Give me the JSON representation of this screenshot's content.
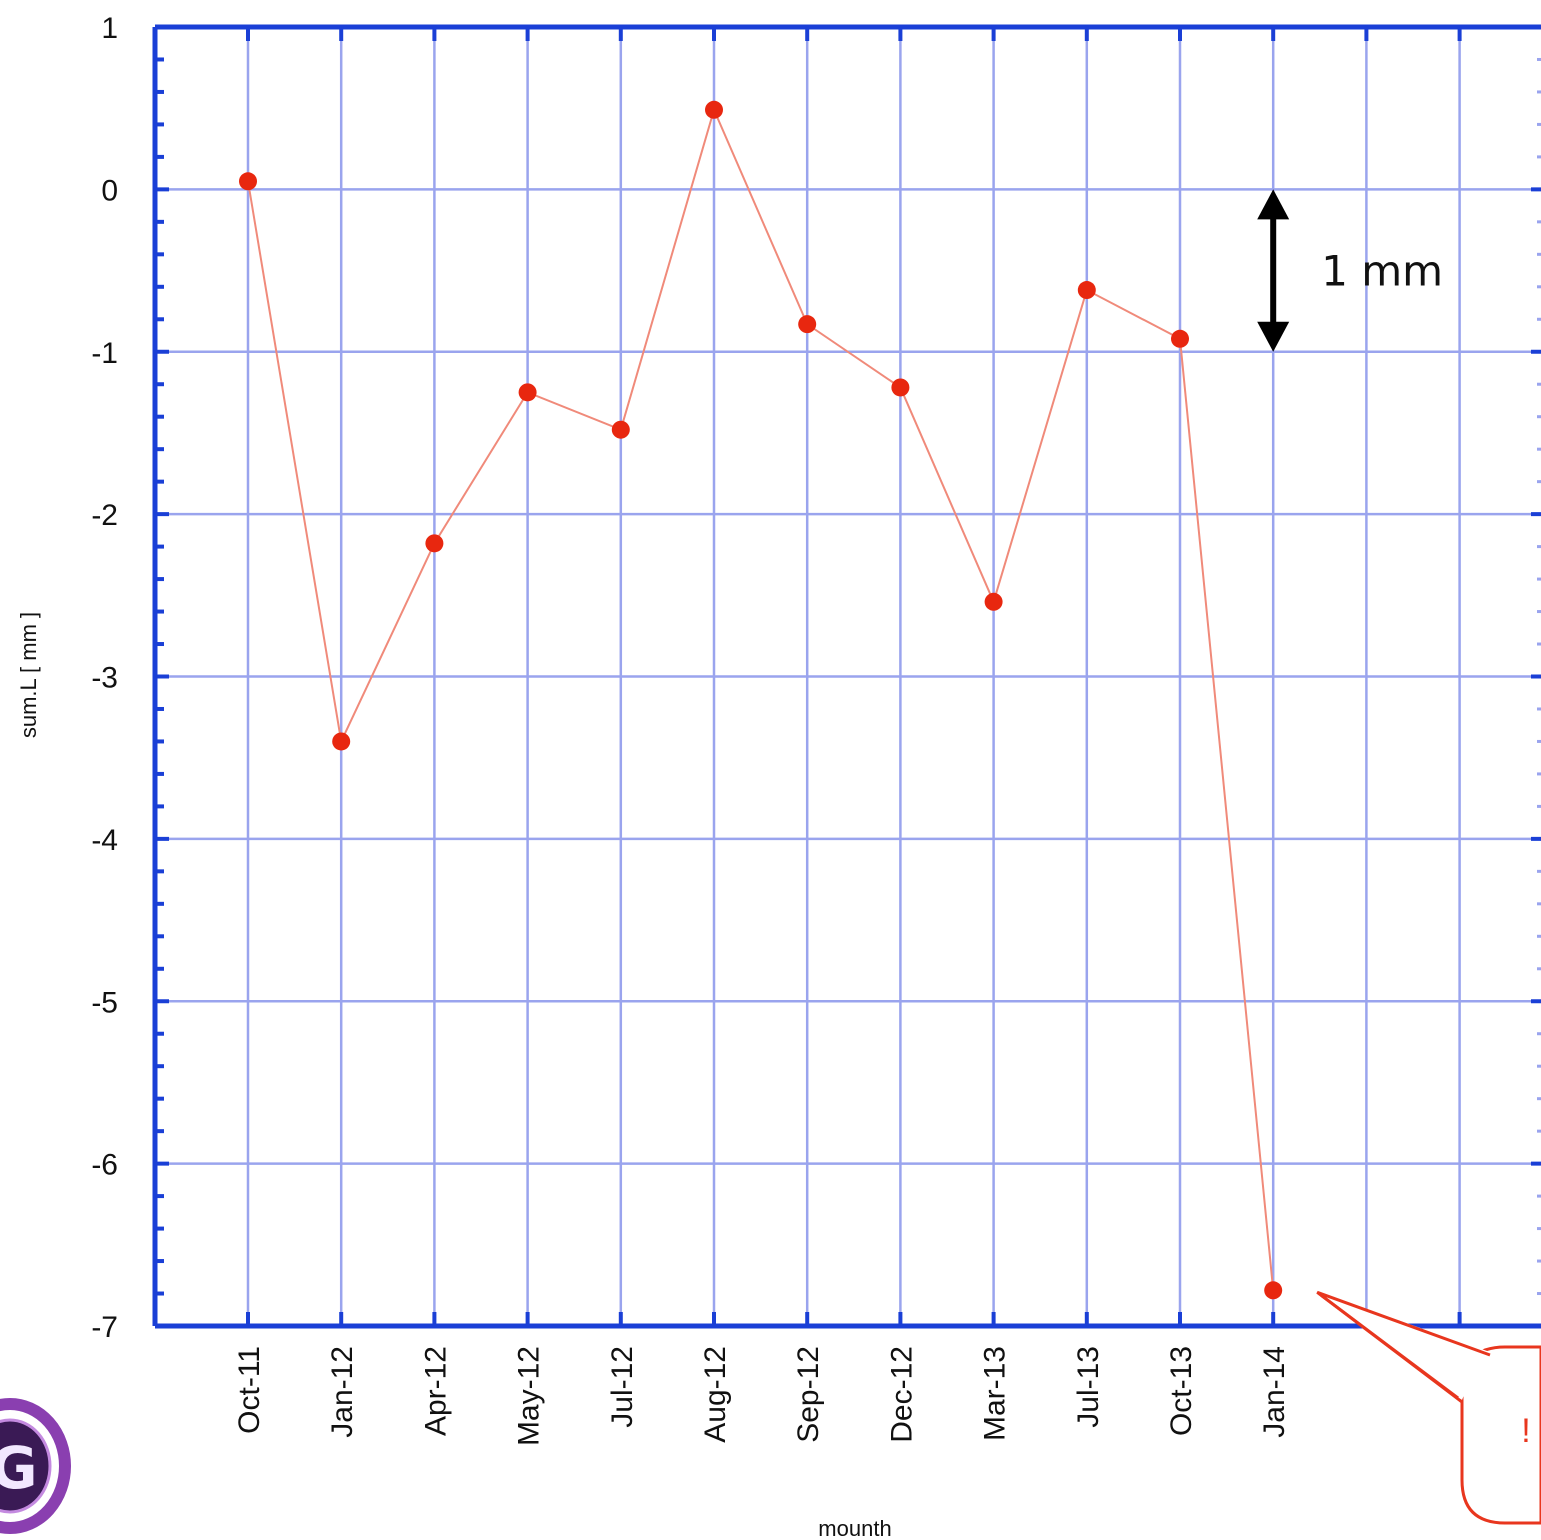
{
  "chart_data": {
    "type": "line",
    "title": "",
    "xlabel": "mounth",
    "ylabel": "sum.L [ mm ]",
    "ylim": [
      -7,
      1
    ],
    "yticks": [
      1,
      0,
      -1,
      -2,
      -3,
      -4,
      -5,
      -6,
      -7
    ],
    "categories": [
      "Oct-11",
      "Jan-12",
      "Apr-12",
      "May-12",
      "Jul-12",
      "Aug-12",
      "Sep-12",
      "Dec-12",
      "Mar-13",
      "Jul-13",
      "Oct-13",
      "Jan-14"
    ],
    "series": [
      {
        "values": [
          0.05,
          -3.4,
          -2.18,
          -1.25,
          -1.48,
          0.49,
          -0.83,
          -1.22,
          -2.54,
          -0.62,
          -0.92,
          -6.78
        ]
      }
    ],
    "grid": true,
    "annotations": [
      {
        "text": "1 mm",
        "type": "double-arrow",
        "from": 0,
        "to": -1
      },
      {
        "text": "!",
        "type": "callout",
        "target": "Jan-14"
      }
    ],
    "colors": {
      "axis": "#1a3fd6",
      "grid": "#9aa4ee",
      "line": "#f08a7a",
      "marker": "#e8270f",
      "callout": "#e8361e"
    }
  }
}
